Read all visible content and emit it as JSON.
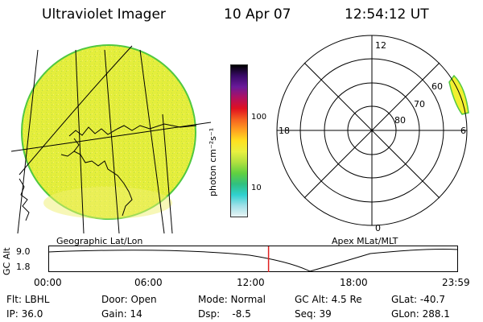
{
  "header": {
    "instrument": "Ultraviolet Imager",
    "date": "10 Apr 07",
    "time": "12:54:12 UT"
  },
  "geo_panel": {
    "label": "Geographic Lat/Lon"
  },
  "colorbar": {
    "unit_label": "photon cm⁻²s⁻¹",
    "ticks": [
      "100",
      "10"
    ],
    "colors": [
      "#000000",
      "#3a0a6a",
      "#6a1a9a",
      "#b01060",
      "#e01020",
      "#f56020",
      "#ffa020",
      "#ffe020",
      "#e8f040",
      "#b0e040",
      "#60d040",
      "#30c080",
      "#30d0d0",
      "#a0e0e8",
      "#e8f4f4"
    ]
  },
  "polar_panel": {
    "label": "Apex  MLat/MLT",
    "mlt_labels": [
      "12",
      "18",
      "6",
      "0"
    ],
    "mlat_labels": [
      "60",
      "70",
      "80"
    ]
  },
  "altitude_strip": {
    "ylabel": "GC Alt",
    "yticks": [
      "9.0",
      "1.8"
    ],
    "xticks": [
      "00:00",
      "06:00",
      "12:00",
      "18:00",
      "23:59"
    ],
    "marker_time": "12:54"
  },
  "footer": {
    "filter": "Flt: LBHL",
    "ip": "IP: 36.0",
    "door": "Door: Open",
    "gain": "Gain: 14",
    "mode": "Mode: Normal",
    "dsp": "Dsp:    -8.5",
    "gc_alt": "GC Alt: 4.5 Re",
    "seq": "Seq: 39",
    "glat": "GLat: -40.7",
    "glon": "GLon: 288.1"
  },
  "colors": {
    "disk_fill": "#e4ee3c",
    "disk_edge": "#50c840",
    "polar_fill": "#f2f030",
    "marker": "#e02020"
  }
}
